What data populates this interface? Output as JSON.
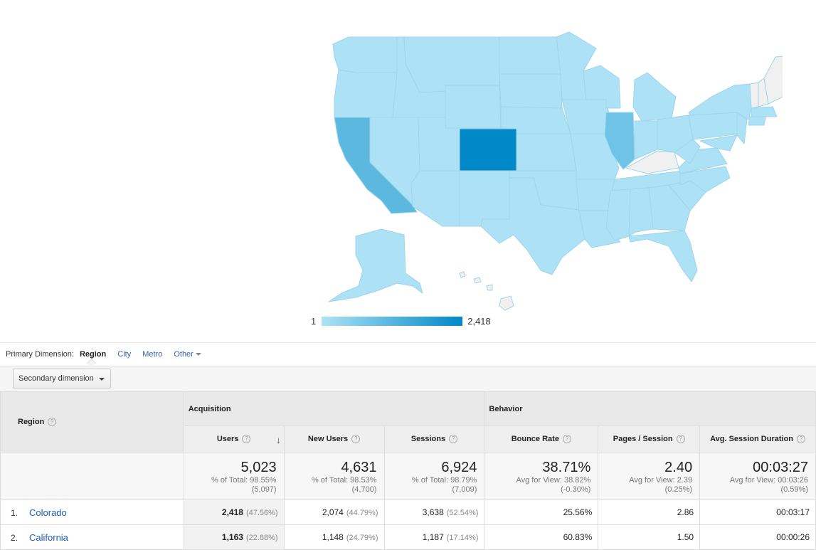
{
  "map": {
    "legend_min": "1",
    "legend_max": "2,418",
    "colors": {
      "min": "#ade2f6",
      "mid": "#5db8e0",
      "max": "#0088c8",
      "nodata": "#f0f0f0"
    }
  },
  "primary_dimension": {
    "label": "Primary Dimension:",
    "options": [
      "Region",
      "City",
      "Metro",
      "Other"
    ],
    "active": "Region"
  },
  "secondary_dimension_label": "Secondary dimension",
  "table": {
    "group_acquisition": "Acquisition",
    "group_behavior": "Behavior",
    "col_region": "Region",
    "columns": [
      "Users",
      "New Users",
      "Sessions",
      "Bounce Rate",
      "Pages / Session",
      "Avg. Session Duration"
    ],
    "totals": {
      "users": {
        "main": "5,023",
        "sub1": "% of Total: 98.55%",
        "sub2": "(5,097)"
      },
      "new_users": {
        "main": "4,631",
        "sub1": "% of Total: 98.53%",
        "sub2": "(4,700)"
      },
      "sessions": {
        "main": "6,924",
        "sub1": "% of Total: 98.79%",
        "sub2": "(7,009)"
      },
      "bounce_rate": {
        "main": "38.71%",
        "sub1": "Avg for View: 38.82%",
        "sub2": "(-0.30%)"
      },
      "pages_session": {
        "main": "2.40",
        "sub1": "Avg for View: 2.39",
        "sub2": "(0.25%)"
      },
      "avg_duration": {
        "main": "00:03:27",
        "sub1": "Avg for View: 00:03:26",
        "sub2": "(0.59%)"
      }
    },
    "rows": [
      {
        "idx": "1.",
        "region": "Colorado",
        "users": "2,418",
        "users_pct": "(47.56%)",
        "new_users": "2,074",
        "new_users_pct": "(44.79%)",
        "sessions": "3,638",
        "sessions_pct": "(52.54%)",
        "bounce_rate": "25.56%",
        "pages_session": "2.86",
        "avg_duration": "00:03:17"
      },
      {
        "idx": "2.",
        "region": "California",
        "users": "1,163",
        "users_pct": "(22.88%)",
        "new_users": "1,148",
        "new_users_pct": "(24.79%)",
        "sessions": "1,187",
        "sessions_pct": "(17.14%)",
        "bounce_rate": "60.83%",
        "pages_session": "1.50",
        "avg_duration": "00:00:26"
      }
    ]
  }
}
